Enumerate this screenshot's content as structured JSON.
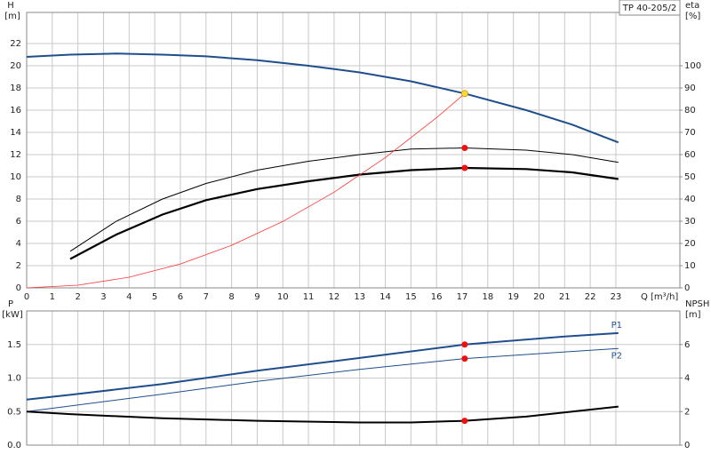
{
  "chart_data": [
    {
      "type": "line",
      "title": "TP 40-205/2",
      "y_label": "H",
      "y_unit": "[m]",
      "y2_label": "eta",
      "y2_unit": "[%]",
      "x_label": "Q [m³/h]",
      "xlim": [
        0,
        25.5
      ],
      "xticks": [
        0,
        1,
        2,
        3,
        4,
        5,
        6,
        7,
        8,
        9,
        10,
        11,
        12,
        13,
        14,
        15,
        16,
        17,
        18,
        19,
        20,
        21,
        22,
        23
      ],
      "ylim": [
        0,
        24.8
      ],
      "yticks": [
        0,
        2,
        4,
        6,
        8,
        10,
        12,
        14,
        16,
        18,
        20,
        22
      ],
      "y2lim": [
        0,
        124
      ],
      "y2ticks": [
        0,
        10,
        20,
        30,
        40,
        50,
        60,
        70,
        80,
        90,
        100
      ],
      "grid": true,
      "xtick_labels": true,
      "series": [
        {
          "color": "#1f4e8c",
          "width": 2,
          "axis": "y",
          "x": [
            0,
            1.7,
            3.5,
            5.3,
            7,
            9,
            11,
            13,
            15,
            17.1,
            19.5,
            21.3,
            23.1
          ],
          "values": [
            20.8,
            21.0,
            21.1,
            21.0,
            20.85,
            20.5,
            20.0,
            19.4,
            18.6,
            17.5,
            16.0,
            14.7,
            13.1
          ]
        },
        {
          "color": "#000000",
          "width": 1,
          "axis": "y2",
          "x": [
            1.7,
            3.5,
            5.3,
            7,
            9,
            11,
            13,
            15,
            17.1,
            19.5,
            21.3,
            23.1
          ],
          "values": [
            16.5,
            30,
            40,
            47,
            53,
            57,
            60,
            62.5,
            63,
            62,
            60,
            56.5
          ]
        },
        {
          "color": "#000000",
          "width": 2.2,
          "axis": "y2",
          "x": [
            1.7,
            3.5,
            5.3,
            7,
            9,
            11,
            13,
            15,
            17.1,
            19.5,
            21.3,
            23.1
          ],
          "values": [
            13,
            24,
            33,
            39.5,
            44.5,
            48,
            51,
            53,
            54,
            53.5,
            52,
            49
          ]
        },
        {
          "color": "#ff3333",
          "width": 0.8,
          "axis": "y",
          "x": [
            0,
            2,
            4,
            6,
            8,
            10,
            12,
            14,
            16,
            17.1
          ],
          "values": [
            0,
            0.24,
            0.96,
            2.15,
            3.83,
            5.98,
            8.62,
            11.73,
            15.32,
            17.5
          ]
        }
      ],
      "markers": [
        {
          "x": 17.1,
          "y": 17.5,
          "axis": "y",
          "color": "#ffdd33"
        },
        {
          "x": 17.1,
          "y": 63,
          "axis": "y2",
          "color": "#ee1111"
        },
        {
          "x": 17.1,
          "y": 54,
          "axis": "y2",
          "color": "#ee1111"
        }
      ]
    },
    {
      "type": "line",
      "y_label": "P",
      "y_unit": "[kW]",
      "y2_label": "NPSH",
      "y2_unit": "[m]",
      "xlim": [
        0,
        25.5
      ],
      "xticks": [
        0,
        1,
        2,
        3,
        4,
        5,
        6,
        7,
        8,
        9,
        10,
        11,
        12,
        13,
        14,
        15,
        16,
        17,
        18,
        19,
        20,
        21,
        22,
        23
      ],
      "ylim": [
        0,
        2.0
      ],
      "yticks": [
        {
          "value": 0,
          "label": "0.0"
        },
        0.5,
        {
          "value": 1,
          "label": "1.0"
        },
        1.5
      ],
      "y2lim": [
        0,
        8.0
      ],
      "y2ticks": [
        0,
        2,
        4,
        6
      ],
      "grid": true,
      "xtick_labels": false,
      "series": [
        {
          "name": "P1",
          "color": "#1f4e8c",
          "width": 2,
          "axis": "y",
          "x": [
            0,
            1.7,
            5.3,
            9,
            13,
            17.1,
            21,
            23.1
          ],
          "values": [
            0.68,
            0.75,
            0.91,
            1.11,
            1.3,
            1.5,
            1.62,
            1.67
          ]
        },
        {
          "name": "P2",
          "color": "#1f4e8c",
          "width": 1,
          "axis": "y",
          "x": [
            0,
            5.3,
            9,
            13,
            17.1,
            21,
            23.1
          ],
          "values": [
            0.5,
            0.76,
            0.95,
            1.13,
            1.29,
            1.39,
            1.44
          ]
        },
        {
          "color": "#000000",
          "width": 2,
          "axis": "y2",
          "x": [
            0,
            1.7,
            5.3,
            9,
            13,
            15,
            17.1,
            19.5,
            21.3,
            23.1
          ],
          "values": [
            2.0,
            1.85,
            1.6,
            1.45,
            1.35,
            1.35,
            1.45,
            1.7,
            2.0,
            2.3
          ]
        }
      ],
      "markers": [
        {
          "x": 17.1,
          "y": 1.5,
          "axis": "y",
          "color": "#ee1111"
        },
        {
          "x": 17.1,
          "y": 1.29,
          "axis": "y",
          "color": "#ee1111"
        },
        {
          "x": 17.1,
          "y": 1.45,
          "axis": "y2",
          "color": "#ee1111"
        }
      ]
    }
  ]
}
